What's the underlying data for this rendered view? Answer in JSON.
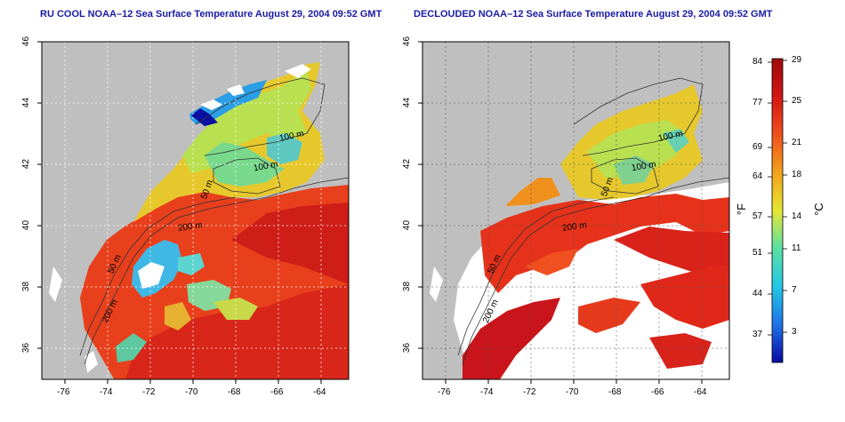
{
  "titles": {
    "left": "RU COOL NOAA–12 Sea Surface Temperature August 29, 2004 09:52 GMT",
    "right": "DECLOUDED NOAA–12 Sea Surface Temperature August 29, 2004 09:52 GMT"
  },
  "x_ticks": [
    "-76",
    "-74",
    "-72",
    "-70",
    "-68",
    "-66",
    "-64"
  ],
  "y_ticks": [
    "46",
    "44",
    "42",
    "40",
    "38",
    "36"
  ],
  "contour_labels": {
    "left": [
      "100 m",
      "100 m",
      "50 m",
      "200 m",
      "50 m",
      "200 m"
    ],
    "right": [
      "100 m",
      "100 m",
      "50 m",
      "200 m",
      "50 m",
      "200 m"
    ]
  },
  "colorbar": {
    "fahrenheit": [
      "84",
      "77",
      "69",
      "64",
      "57",
      "51",
      "44",
      "37"
    ],
    "celsius": [
      "29",
      "25",
      "21",
      "18",
      "14",
      "11",
      "7",
      "3"
    ],
    "unit_f": "°F",
    "unit_c": "°C",
    "colors": [
      "#0a0aa0",
      "#1e6fe6",
      "#22c8e6",
      "#5ee0a0",
      "#e6e632",
      "#f2a41c",
      "#f0501e",
      "#d21414",
      "#a00a0a"
    ]
  },
  "colors": {
    "land": "#bfbfbf",
    "cloud": "#ffffff",
    "title": "#1a1aa6"
  }
}
